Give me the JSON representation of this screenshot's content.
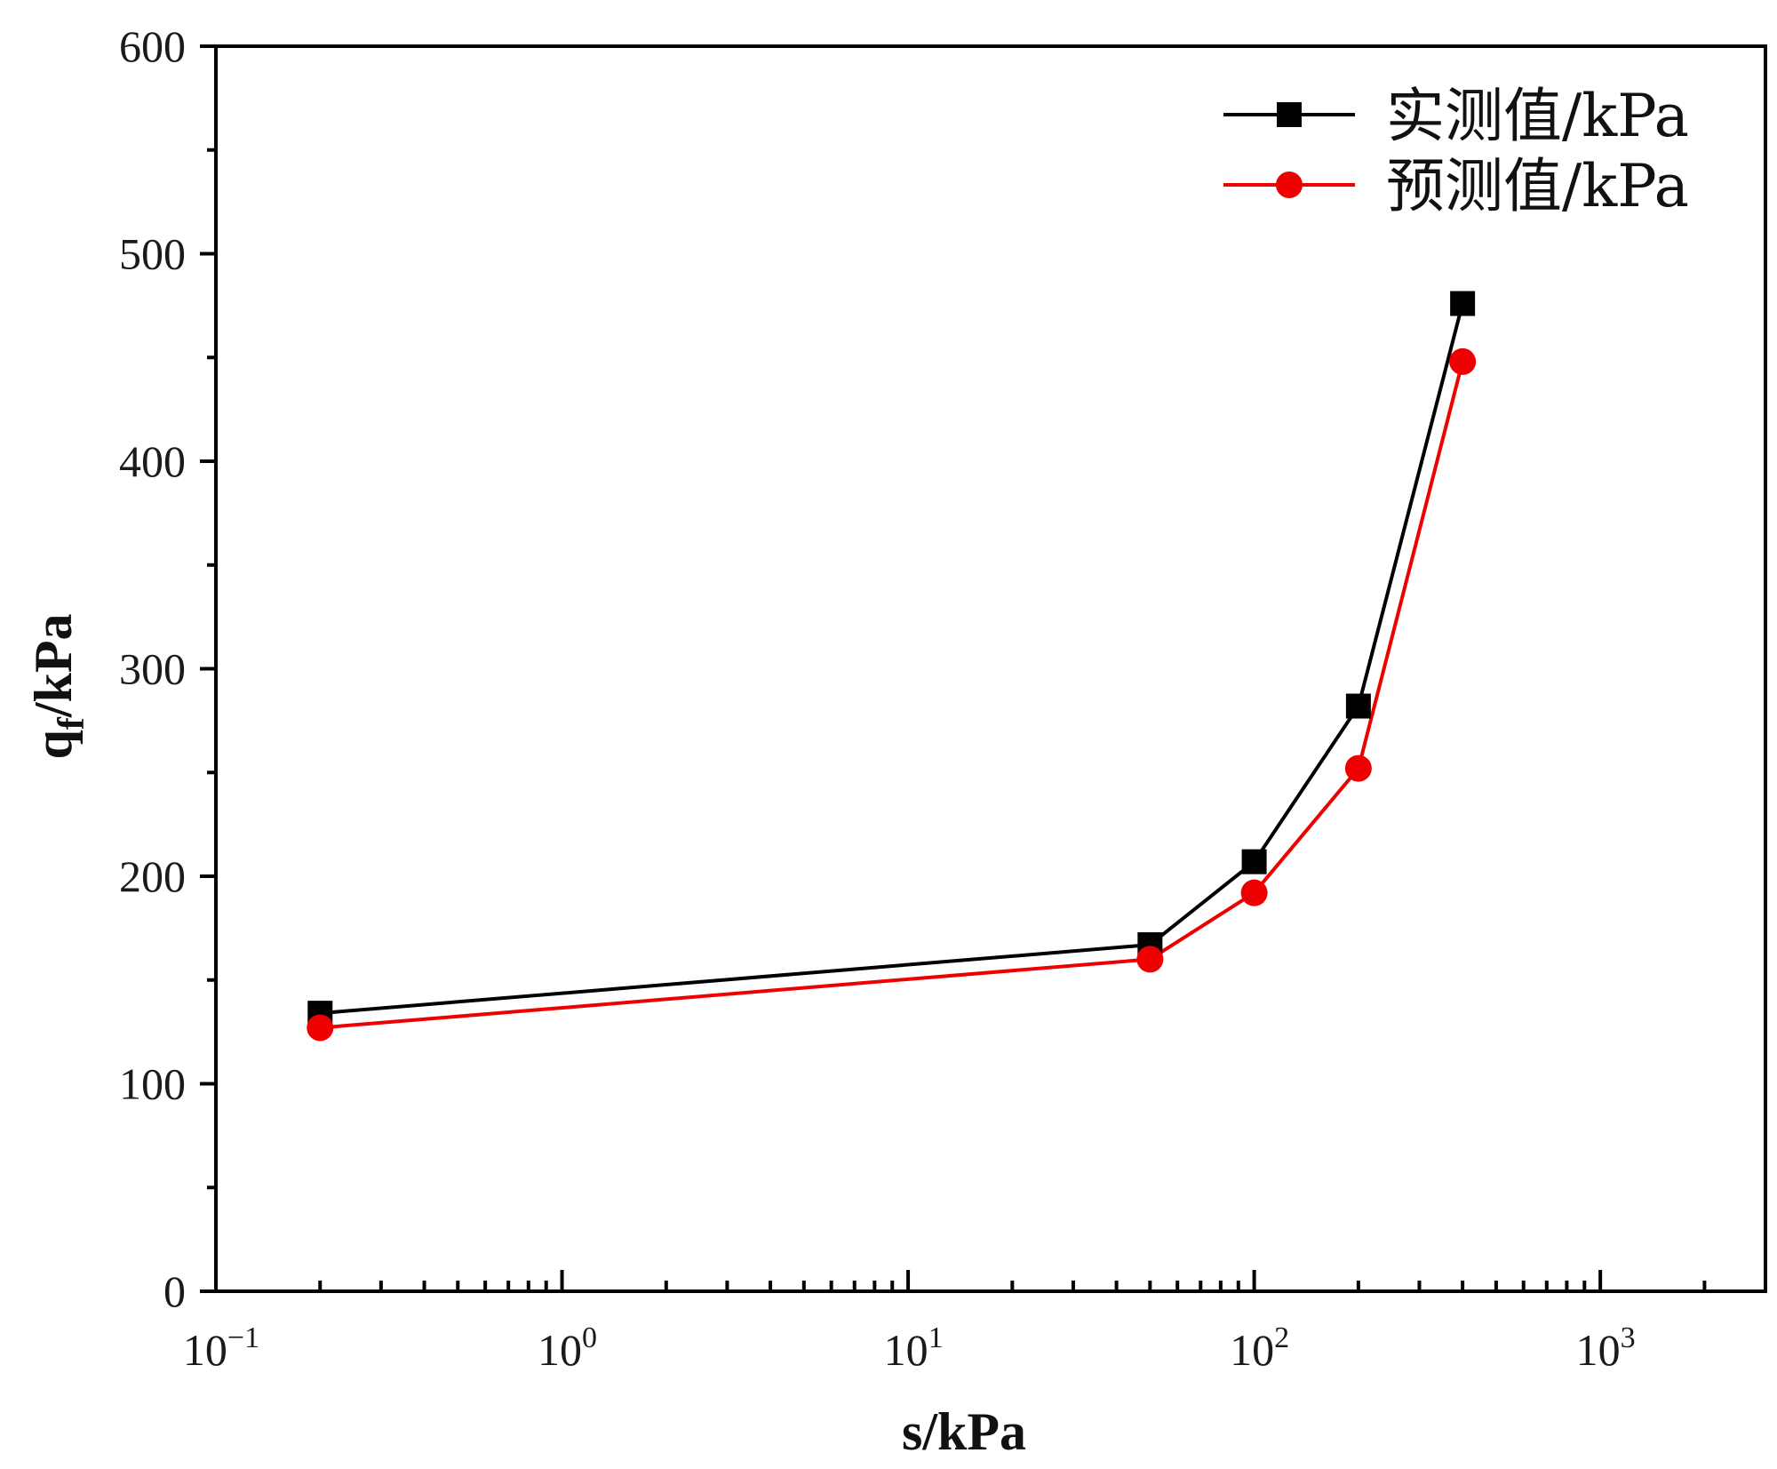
{
  "chart_data": {
    "type": "line",
    "x_scale": "log",
    "xlabel": "s/kPa",
    "ylabel": {
      "base": "q",
      "subscript": "f",
      "suffix": "/kPa"
    },
    "xlim": [
      0.1,
      3000
    ],
    "ylim": [
      0,
      600
    ],
    "x_major_ticks": [
      0.1,
      1,
      10,
      100,
      1000
    ],
    "x_tick_labels": [
      {
        "base": "10",
        "exp": "−1"
      },
      {
        "base": "10",
        "exp": "0"
      },
      {
        "base": "10",
        "exp": "1"
      },
      {
        "base": "10",
        "exp": "2"
      },
      {
        "base": "10",
        "exp": "3"
      }
    ],
    "y_major_ticks": [
      0,
      100,
      200,
      300,
      400,
      500,
      600
    ],
    "y_tick_labels": [
      "0",
      "100",
      "200",
      "300",
      "400",
      "500",
      "600"
    ],
    "y_minor_ticks": [
      50,
      150,
      250,
      350,
      450,
      550
    ],
    "x": [
      0.2,
      50,
      100,
      200,
      400
    ],
    "series": [
      {
        "name": "实测值/kPa",
        "marker": "square",
        "color": "#000000",
        "values": [
          134,
          167,
          207,
          282,
          476
        ]
      },
      {
        "name": "预测值/kPa",
        "marker": "circle",
        "color": "#ee0000",
        "values": [
          127,
          160,
          192,
          252,
          448
        ]
      }
    ],
    "legend_position": "top-right",
    "grid": false
  }
}
